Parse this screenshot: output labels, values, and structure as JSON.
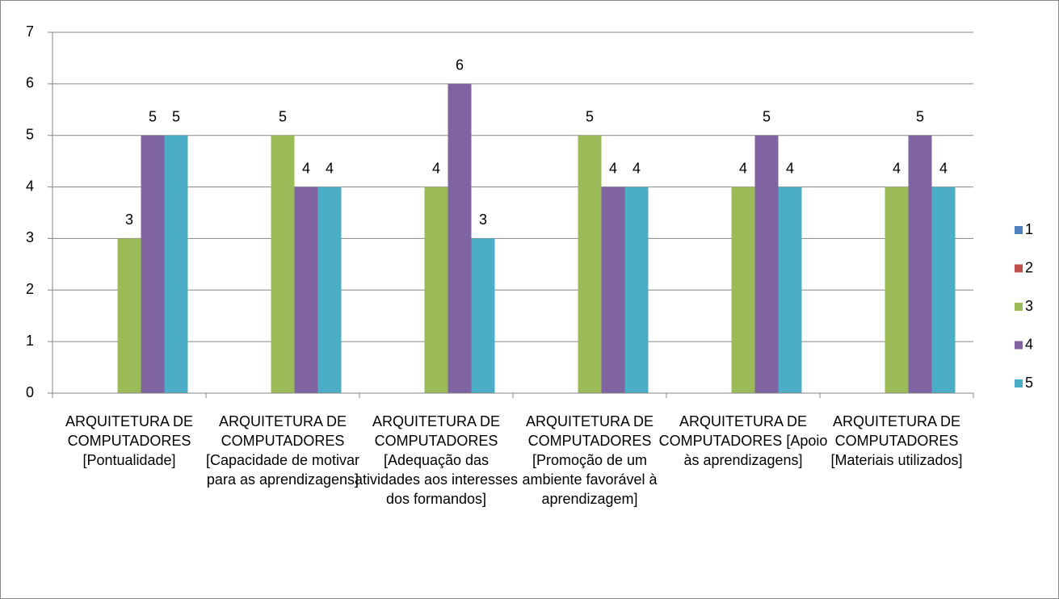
{
  "chart_data": {
    "type": "bar",
    "categories": [
      "ARQUITETURA DE COMPUTADORES [Pontualidade]",
      "ARQUITETURA DE COMPUTADORES [Capacidade de motivar para as aprendizagens]",
      "ARQUITETURA DE COMPUTADORES [Adequação das atividades aos interesses dos formandos]",
      "ARQUITETURA DE COMPUTADORES [Promoção de um ambiente favorável à aprendizagem]",
      "ARQUITETURA DE COMPUTADORES [Apoio às aprendizagens]",
      "ARQUITETURA DE COMPUTADORES [Materiais utilizados]"
    ],
    "series": [
      {
        "name": "1",
        "color": "#4f81bd",
        "values": [
          null,
          null,
          null,
          null,
          null,
          null
        ]
      },
      {
        "name": "2",
        "color": "#c0504d",
        "values": [
          null,
          null,
          null,
          null,
          null,
          null
        ]
      },
      {
        "name": "3",
        "color": "#9bbb59",
        "values": [
          3,
          5,
          4,
          5,
          4,
          4
        ]
      },
      {
        "name": "4",
        "color": "#8064a2",
        "values": [
          5,
          4,
          6,
          4,
          5,
          5
        ]
      },
      {
        "name": "5",
        "color": "#4bacc6",
        "values": [
          5,
          4,
          3,
          4,
          4,
          4
        ]
      }
    ],
    "ylim": [
      0,
      7
    ],
    "yticks": [
      0,
      1,
      2,
      3,
      4,
      5,
      6,
      7
    ],
    "grid": true,
    "legend": "right",
    "data_labels": true
  }
}
